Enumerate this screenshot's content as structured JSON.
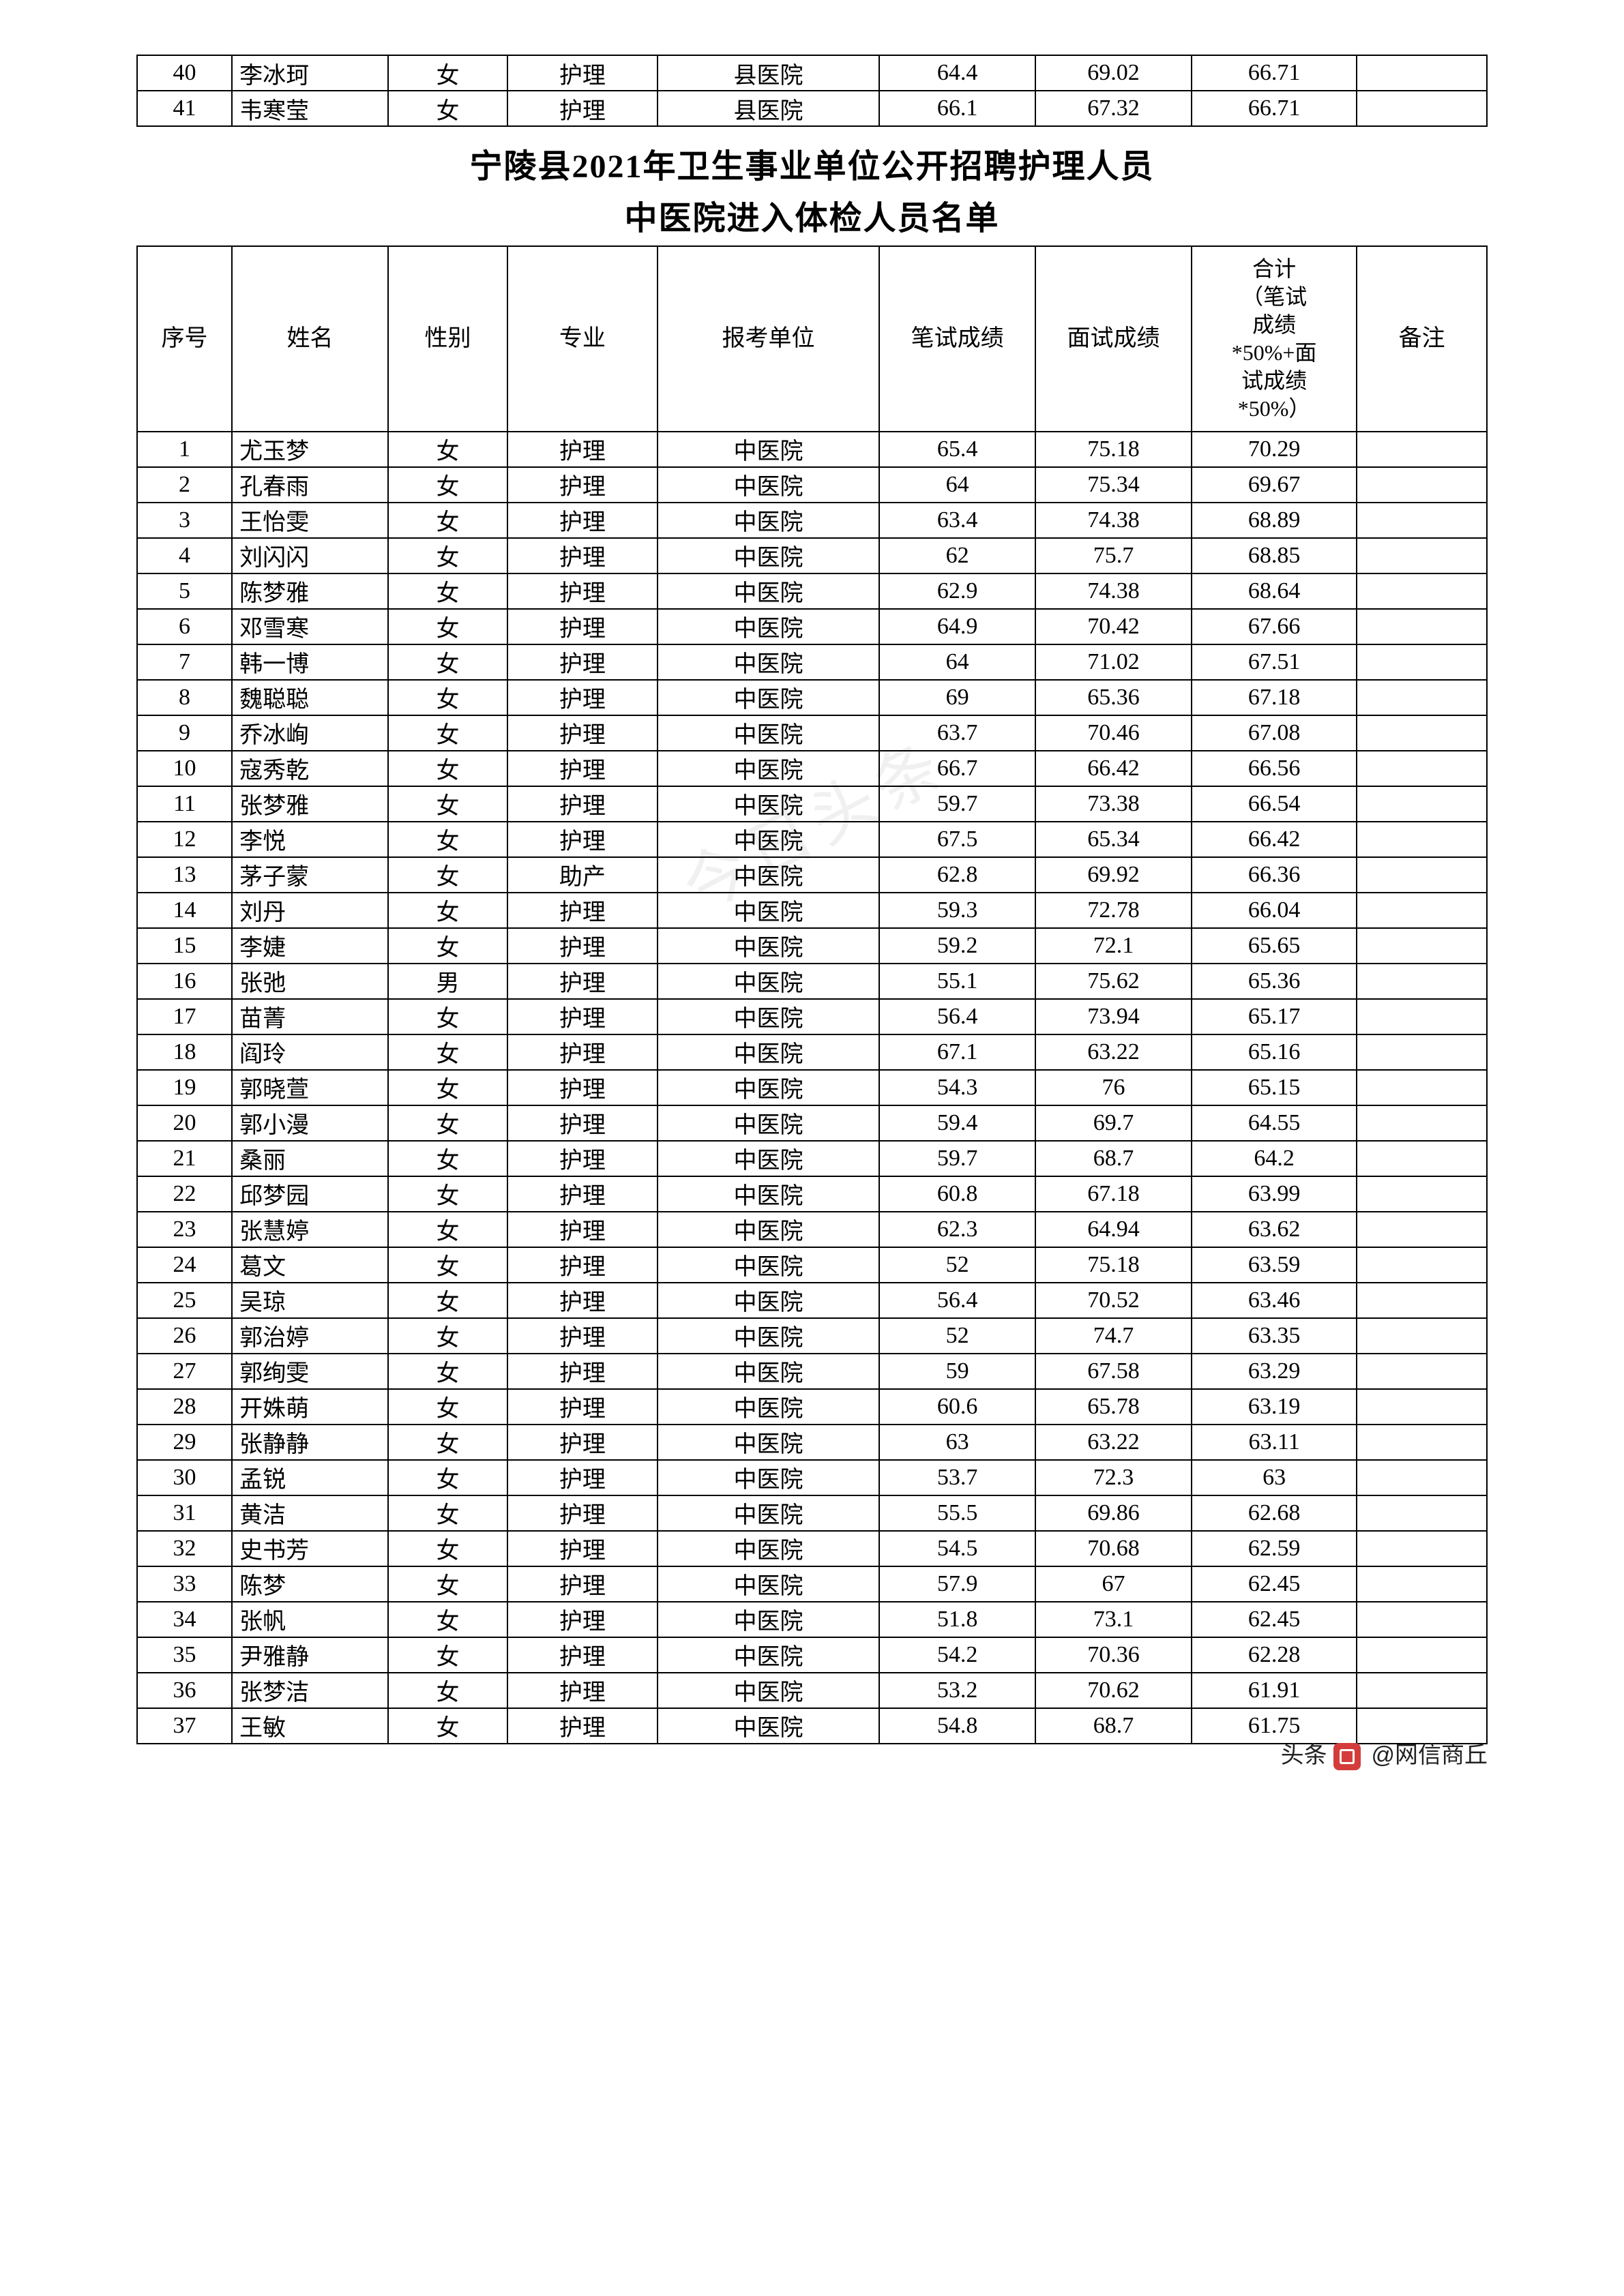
{
  "top_rows": [
    {
      "seq": "40",
      "name": "李冰珂",
      "gender": "女",
      "major": "护理",
      "unit": "县医院",
      "s1": "64.4",
      "s2": "69.02",
      "total": "66.71",
      "remark": ""
    },
    {
      "seq": "41",
      "name": "韦寒莹",
      "gender": "女",
      "major": "护理",
      "unit": "县医院",
      "s1": "66.1",
      "s2": "67.32",
      "total": "66.71",
      "remark": ""
    }
  ],
  "title_line1": "宁陵县2021年卫生事业单位公开招聘护理人员",
  "title_line2": "中医院进入体检人员名单",
  "headers": {
    "seq": "序号",
    "name": "姓名",
    "gender": "性别",
    "major": "专业",
    "unit": "报考单位",
    "s1": "笔试成绩",
    "s2": "面试成绩",
    "total_l1": "合计",
    "total_l2": "（笔试",
    "total_l3": "成绩",
    "total_l4": "*50%+面",
    "total_l5": "试成绩",
    "total_l6": "*50%）",
    "remark": "备注"
  },
  "main_rows": [
    {
      "seq": "1",
      "name": "尤玉梦",
      "gender": "女",
      "major": "护理",
      "unit": "中医院",
      "s1": "65.4",
      "s2": "75.18",
      "total": "70.29",
      "remark": ""
    },
    {
      "seq": "2",
      "name": "孔春雨",
      "gender": "女",
      "major": "护理",
      "unit": "中医院",
      "s1": "64",
      "s2": "75.34",
      "total": "69.67",
      "remark": ""
    },
    {
      "seq": "3",
      "name": "王怡雯",
      "gender": "女",
      "major": "护理",
      "unit": "中医院",
      "s1": "63.4",
      "s2": "74.38",
      "total": "68.89",
      "remark": ""
    },
    {
      "seq": "4",
      "name": "刘闪闪",
      "gender": "女",
      "major": "护理",
      "unit": "中医院",
      "s1": "62",
      "s2": "75.7",
      "total": "68.85",
      "remark": ""
    },
    {
      "seq": "5",
      "name": "陈梦雅",
      "gender": "女",
      "major": "护理",
      "unit": "中医院",
      "s1": "62.9",
      "s2": "74.38",
      "total": "68.64",
      "remark": ""
    },
    {
      "seq": "6",
      "name": "邓雪寒",
      "gender": "女",
      "major": "护理",
      "unit": "中医院",
      "s1": "64.9",
      "s2": "70.42",
      "total": "67.66",
      "remark": ""
    },
    {
      "seq": "7",
      "name": "韩一博",
      "gender": "女",
      "major": "护理",
      "unit": "中医院",
      "s1": "64",
      "s2": "71.02",
      "total": "67.51",
      "remark": ""
    },
    {
      "seq": "8",
      "name": "魏聪聪",
      "gender": "女",
      "major": "护理",
      "unit": "中医院",
      "s1": "69",
      "s2": "65.36",
      "total": "67.18",
      "remark": ""
    },
    {
      "seq": "9",
      "name": "乔冰峋",
      "gender": "女",
      "major": "护理",
      "unit": "中医院",
      "s1": "63.7",
      "s2": "70.46",
      "total": "67.08",
      "remark": ""
    },
    {
      "seq": "10",
      "name": "寇秀乾",
      "gender": "女",
      "major": "护理",
      "unit": "中医院",
      "s1": "66.7",
      "s2": "66.42",
      "total": "66.56",
      "remark": ""
    },
    {
      "seq": "11",
      "name": "张梦雅",
      "gender": "女",
      "major": "护理",
      "unit": "中医院",
      "s1": "59.7",
      "s2": "73.38",
      "total": "66.54",
      "remark": ""
    },
    {
      "seq": "12",
      "name": "李悦",
      "gender": "女",
      "major": "护理",
      "unit": "中医院",
      "s1": "67.5",
      "s2": "65.34",
      "total": "66.42",
      "remark": ""
    },
    {
      "seq": "13",
      "name": "茅子蒙",
      "gender": "女",
      "major": "助产",
      "unit": "中医院",
      "s1": "62.8",
      "s2": "69.92",
      "total": "66.36",
      "remark": ""
    },
    {
      "seq": "14",
      "name": "刘丹",
      "gender": "女",
      "major": "护理",
      "unit": "中医院",
      "s1": "59.3",
      "s2": "72.78",
      "total": "66.04",
      "remark": ""
    },
    {
      "seq": "15",
      "name": "李婕",
      "gender": "女",
      "major": "护理",
      "unit": "中医院",
      "s1": "59.2",
      "s2": "72.1",
      "total": "65.65",
      "remark": ""
    },
    {
      "seq": "16",
      "name": "张弛",
      "gender": "男",
      "major": "护理",
      "unit": "中医院",
      "s1": "55.1",
      "s2": "75.62",
      "total": "65.36",
      "remark": ""
    },
    {
      "seq": "17",
      "name": "苗菁",
      "gender": "女",
      "major": "护理",
      "unit": "中医院",
      "s1": "56.4",
      "s2": "73.94",
      "total": "65.17",
      "remark": ""
    },
    {
      "seq": "18",
      "name": "阎玲",
      "gender": "女",
      "major": "护理",
      "unit": "中医院",
      "s1": "67.1",
      "s2": "63.22",
      "total": "65.16",
      "remark": ""
    },
    {
      "seq": "19",
      "name": "郭晓萱",
      "gender": "女",
      "major": "护理",
      "unit": "中医院",
      "s1": "54.3",
      "s2": "76",
      "total": "65.15",
      "remark": ""
    },
    {
      "seq": "20",
      "name": "郭小漫",
      "gender": "女",
      "major": "护理",
      "unit": "中医院",
      "s1": "59.4",
      "s2": "69.7",
      "total": "64.55",
      "remark": ""
    },
    {
      "seq": "21",
      "name": "桑丽",
      "gender": "女",
      "major": "护理",
      "unit": "中医院",
      "s1": "59.7",
      "s2": "68.7",
      "total": "64.2",
      "remark": ""
    },
    {
      "seq": "22",
      "name": "邱梦园",
      "gender": "女",
      "major": "护理",
      "unit": "中医院",
      "s1": "60.8",
      "s2": "67.18",
      "total": "63.99",
      "remark": ""
    },
    {
      "seq": "23",
      "name": "张慧婷",
      "gender": "女",
      "major": "护理",
      "unit": "中医院",
      "s1": "62.3",
      "s2": "64.94",
      "total": "63.62",
      "remark": ""
    },
    {
      "seq": "24",
      "name": "葛文",
      "gender": "女",
      "major": "护理",
      "unit": "中医院",
      "s1": "52",
      "s2": "75.18",
      "total": "63.59",
      "remark": ""
    },
    {
      "seq": "25",
      "name": "吴琼",
      "gender": "女",
      "major": "护理",
      "unit": "中医院",
      "s1": "56.4",
      "s2": "70.52",
      "total": "63.46",
      "remark": ""
    },
    {
      "seq": "26",
      "name": "郭治婷",
      "gender": "女",
      "major": "护理",
      "unit": "中医院",
      "s1": "52",
      "s2": "74.7",
      "total": "63.35",
      "remark": ""
    },
    {
      "seq": "27",
      "name": "郭绚雯",
      "gender": "女",
      "major": "护理",
      "unit": "中医院",
      "s1": "59",
      "s2": "67.58",
      "total": "63.29",
      "remark": ""
    },
    {
      "seq": "28",
      "name": "开姝萌",
      "gender": "女",
      "major": "护理",
      "unit": "中医院",
      "s1": "60.6",
      "s2": "65.78",
      "total": "63.19",
      "remark": ""
    },
    {
      "seq": "29",
      "name": "张静静",
      "gender": "女",
      "major": "护理",
      "unit": "中医院",
      "s1": "63",
      "s2": "63.22",
      "total": "63.11",
      "remark": ""
    },
    {
      "seq": "30",
      "name": "孟锐",
      "gender": "女",
      "major": "护理",
      "unit": "中医院",
      "s1": "53.7",
      "s2": "72.3",
      "total": "63",
      "remark": ""
    },
    {
      "seq": "31",
      "name": "黄洁",
      "gender": "女",
      "major": "护理",
      "unit": "中医院",
      "s1": "55.5",
      "s2": "69.86",
      "total": "62.68",
      "remark": ""
    },
    {
      "seq": "32",
      "name": "史书芳",
      "gender": "女",
      "major": "护理",
      "unit": "中医院",
      "s1": "54.5",
      "s2": "70.68",
      "total": "62.59",
      "remark": ""
    },
    {
      "seq": "33",
      "name": "陈梦",
      "gender": "女",
      "major": "护理",
      "unit": "中医院",
      "s1": "57.9",
      "s2": "67",
      "total": "62.45",
      "remark": ""
    },
    {
      "seq": "34",
      "name": "张帆",
      "gender": "女",
      "major": "护理",
      "unit": "中医院",
      "s1": "51.8",
      "s2": "73.1",
      "total": "62.45",
      "remark": ""
    },
    {
      "seq": "35",
      "name": "尹雅静",
      "gender": "女",
      "major": "护理",
      "unit": "中医院",
      "s1": "54.2",
      "s2": "70.36",
      "total": "62.28",
      "remark": ""
    },
    {
      "seq": "36",
      "name": "张梦洁",
      "gender": "女",
      "major": "护理",
      "unit": "中医院",
      "s1": "53.2",
      "s2": "70.62",
      "total": "61.91",
      "remark": ""
    },
    {
      "seq": "37",
      "name": "王敏",
      "gender": "女",
      "major": "护理",
      "unit": "中医院",
      "s1": "54.8",
      "s2": "68.7",
      "total": "61.75",
      "remark": ""
    }
  ],
  "watermark_text": "今日头条",
  "footer_prefix": "头条",
  "footer_at": "@网信商丘"
}
